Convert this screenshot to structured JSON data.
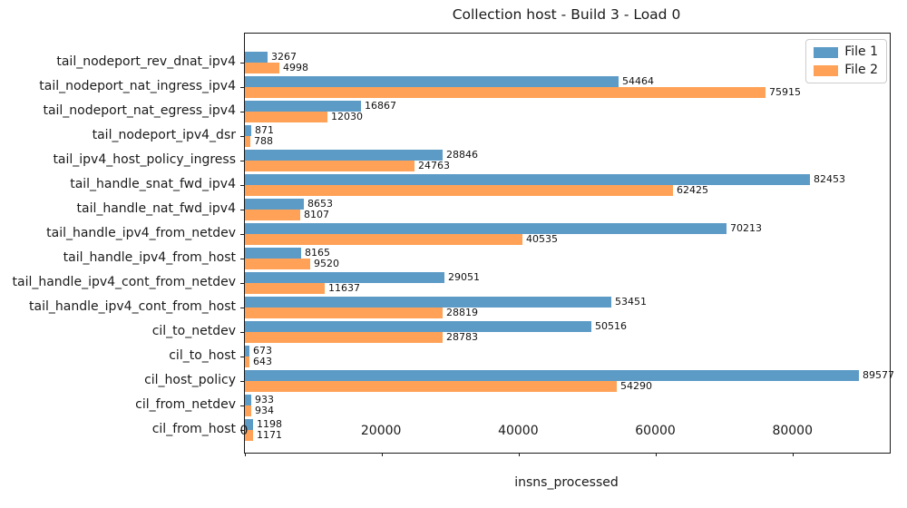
{
  "title": "Collection host - Build 3 - Load 0",
  "chart_data": {
    "type": "bar",
    "orientation": "horizontal",
    "title": "Collection host - Build 3 - Load 0",
    "xlabel": "insns_processed",
    "ylabel": "",
    "grid": false,
    "legend_position": "upper right",
    "xlim": [
      0,
      94056
    ],
    "xticks": [
      0,
      20000,
      40000,
      60000,
      80000
    ],
    "categories_top_to_bottom": [
      "tail_nodeport_rev_dnat_ipv4",
      "tail_nodeport_nat_ingress_ipv4",
      "tail_nodeport_nat_egress_ipv4",
      "tail_nodeport_ipv4_dsr",
      "tail_ipv4_host_policy_ingress",
      "tail_handle_snat_fwd_ipv4",
      "tail_handle_nat_fwd_ipv4",
      "tail_handle_ipv4_from_netdev",
      "tail_handle_ipv4_from_host",
      "tail_handle_ipv4_cont_from_netdev",
      "tail_handle_ipv4_cont_from_host",
      "cil_to_netdev",
      "cil_to_host",
      "cil_host_policy",
      "cil_from_netdev",
      "cil_from_host"
    ],
    "series": [
      {
        "name": "File 1",
        "color": "#5d9bc7",
        "values": [
          3267,
          54464,
          16867,
          871,
          28846,
          82453,
          8653,
          70213,
          8165,
          29051,
          53451,
          50516,
          673,
          89577,
          933,
          1198
        ]
      },
      {
        "name": "File 2",
        "color": "#ffa257",
        "values": [
          4998,
          75915,
          12030,
          788,
          24763,
          62425,
          8107,
          40535,
          9520,
          11637,
          28819,
          28783,
          643,
          54290,
          934,
          1171
        ]
      }
    ]
  }
}
